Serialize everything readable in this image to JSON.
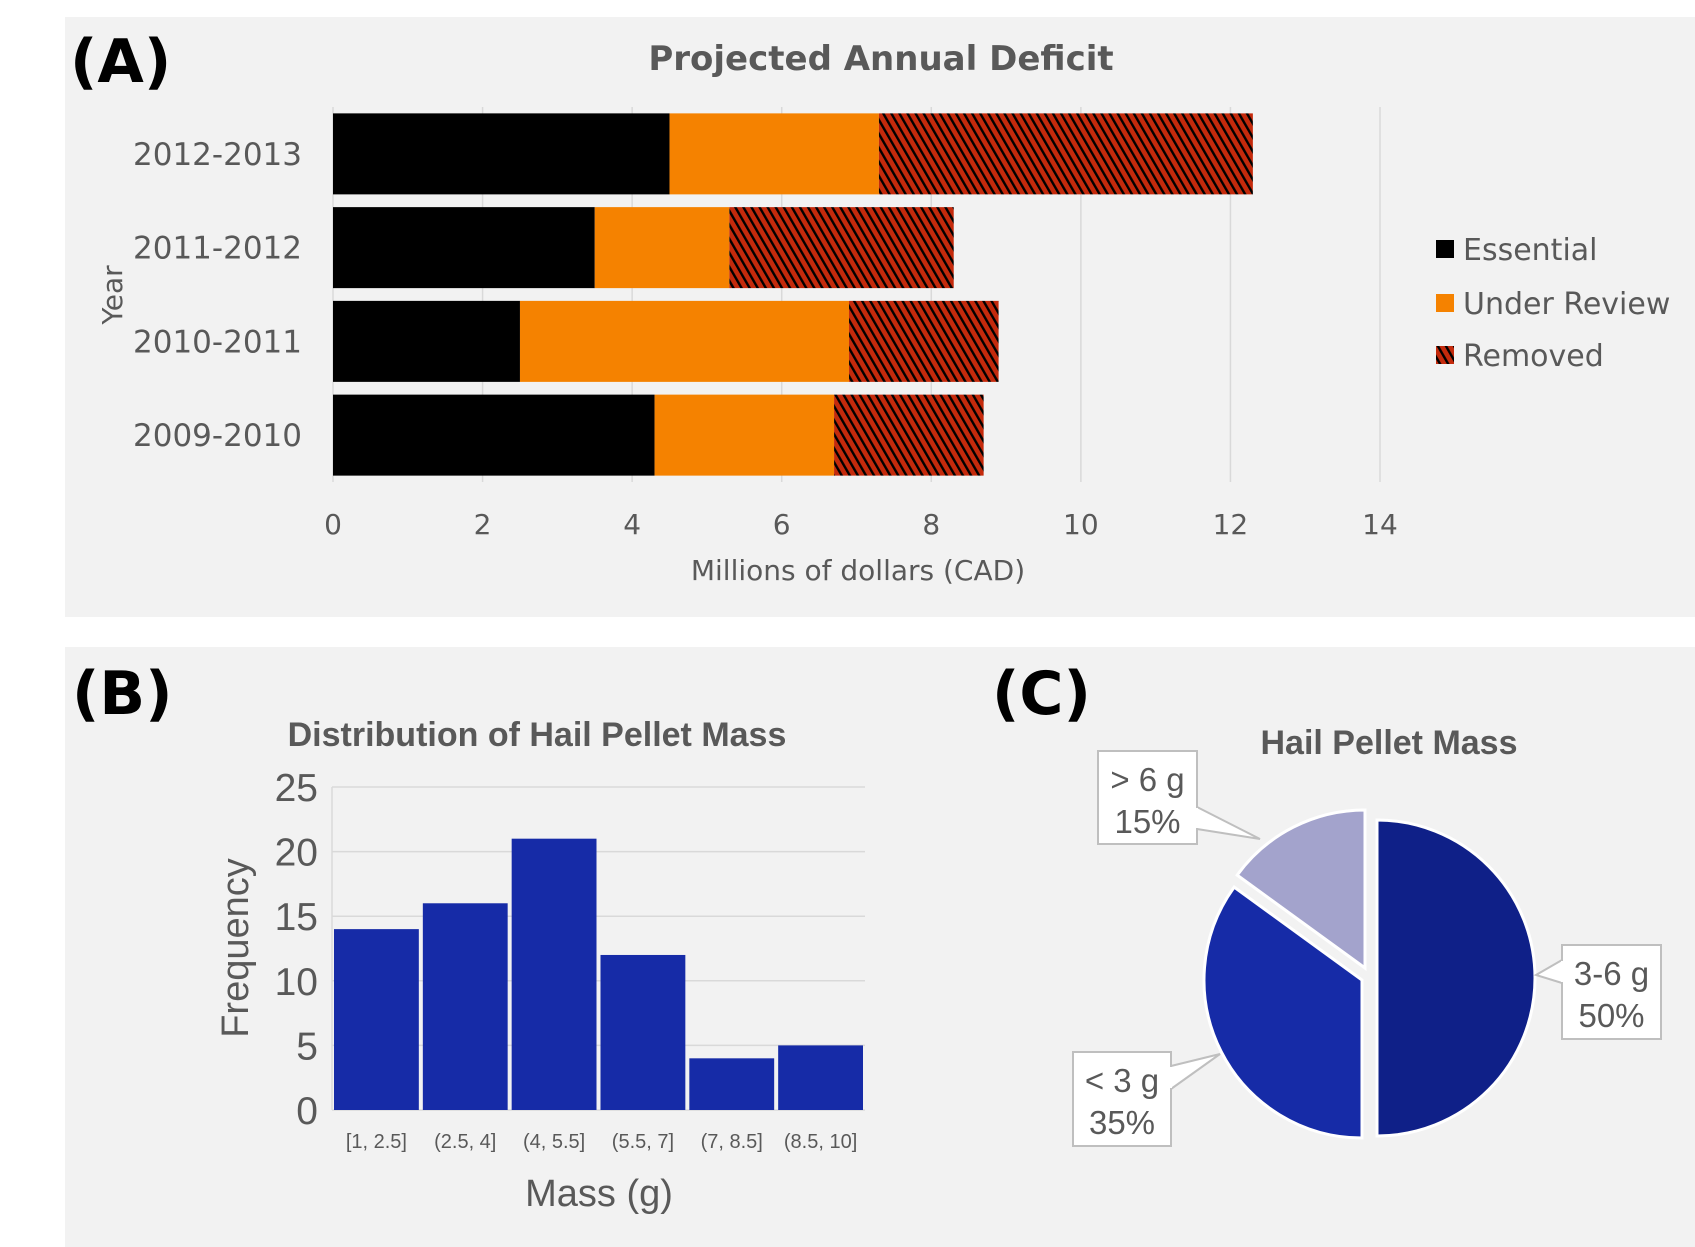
{
  "panels": {
    "a_label": "(A)",
    "b_label": "(B)",
    "c_label": "(C)"
  },
  "chart_data": [
    {
      "type": "bar",
      "orientation": "horizontal",
      "stacked": true,
      "title": "Projected Annual Deficit",
      "xlabel": "Millions of dollars (CAD)",
      "ylabel": "Year",
      "categories": [
        "2012-2013",
        "2011-2012",
        "2010-2011",
        "2009-2010"
      ],
      "series": [
        {
          "name": "Essential",
          "color": "#000000",
          "pattern": "solid",
          "values": [
            4.5,
            3.5,
            2.5,
            4.3
          ]
        },
        {
          "name": "Under Review",
          "color": "#f58200",
          "pattern": "solid",
          "values": [
            2.8,
            1.8,
            4.4,
            2.4
          ]
        },
        {
          "name": "Removed",
          "color": "#c42a0c",
          "pattern": "diagonal-hatch",
          "values": [
            5.0,
            3.0,
            2.0,
            2.0
          ]
        }
      ],
      "xlim": [
        0,
        14
      ],
      "xticks": [
        "0",
        "2",
        "4",
        "6",
        "8",
        "10",
        "12",
        "14"
      ],
      "grid": true,
      "legend": "right"
    },
    {
      "type": "bar",
      "title": "Distribution of Hail Pellet Mass",
      "xlabel": "Mass (g)",
      "ylabel": "Frequency",
      "categories": [
        "[1, 2.5]",
        "(2.5, 4]",
        "(4, 5.5]",
        "(5.5, 7]",
        "(7, 8.5]",
        "(8.5, 10]"
      ],
      "values": [
        14,
        16,
        21,
        12,
        4,
        5
      ],
      "color": "#162ba7",
      "ylim": [
        0,
        25
      ],
      "yticks": [
        "0",
        "5",
        "10",
        "15",
        "20",
        "25"
      ],
      "grid": true
    },
    {
      "type": "pie",
      "title": "Hail Pellet Mass",
      "slices": [
        {
          "label": "3-6 g",
          "value": 50,
          "pct_label": "50%",
          "color": "#0f2088"
        },
        {
          "label": "< 3 g",
          "value": 35,
          "pct_label": "35%",
          "color": "#162ba7"
        },
        {
          "label": "> 6 g",
          "value": 15,
          "pct_label": "15%",
          "color": "#a3a3cc"
        }
      ]
    }
  ]
}
